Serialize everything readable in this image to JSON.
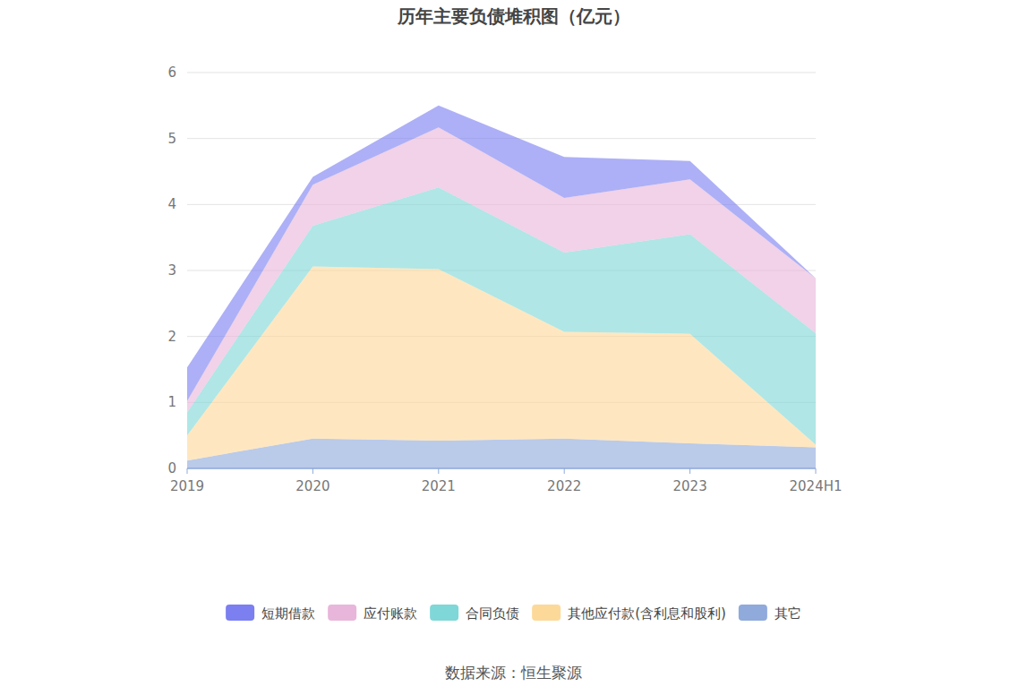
{
  "chart_data": {
    "type": "area",
    "title": "历年主要负债堆积图（亿元）",
    "source": "数据来源：恒生聚源",
    "categories": [
      "2019",
      "2020",
      "2021",
      "2022",
      "2023",
      "2024H1"
    ],
    "stacked": true,
    "grid": true,
    "legend": "bottom",
    "ylim": [
      0,
      6
    ],
    "yticks": [
      0,
      1,
      2,
      3,
      4,
      5,
      6
    ],
    "series": [
      {
        "name": "短期借款",
        "color": "#7b7ff0",
        "values": [
          0.51,
          0.12,
          0.33,
          0.62,
          0.28,
          0.0
        ]
      },
      {
        "name": "应付账款",
        "color": "#e8b6da",
        "values": [
          0.17,
          0.62,
          0.91,
          0.83,
          0.83,
          0.83
        ]
      },
      {
        "name": "合同负债",
        "color": "#80d7d7",
        "values": [
          0.35,
          0.62,
          1.24,
          1.2,
          1.51,
          1.69
        ]
      },
      {
        "name": "其他应付款(含利息和股利)",
        "color": "#fdd999",
        "values": [
          0.38,
          2.61,
          2.6,
          1.62,
          1.66,
          0.04
        ]
      },
      {
        "name": "其它",
        "color": "#8faadb",
        "values": [
          0.12,
          0.45,
          0.42,
          0.45,
          0.38,
          0.32
        ]
      }
    ]
  }
}
